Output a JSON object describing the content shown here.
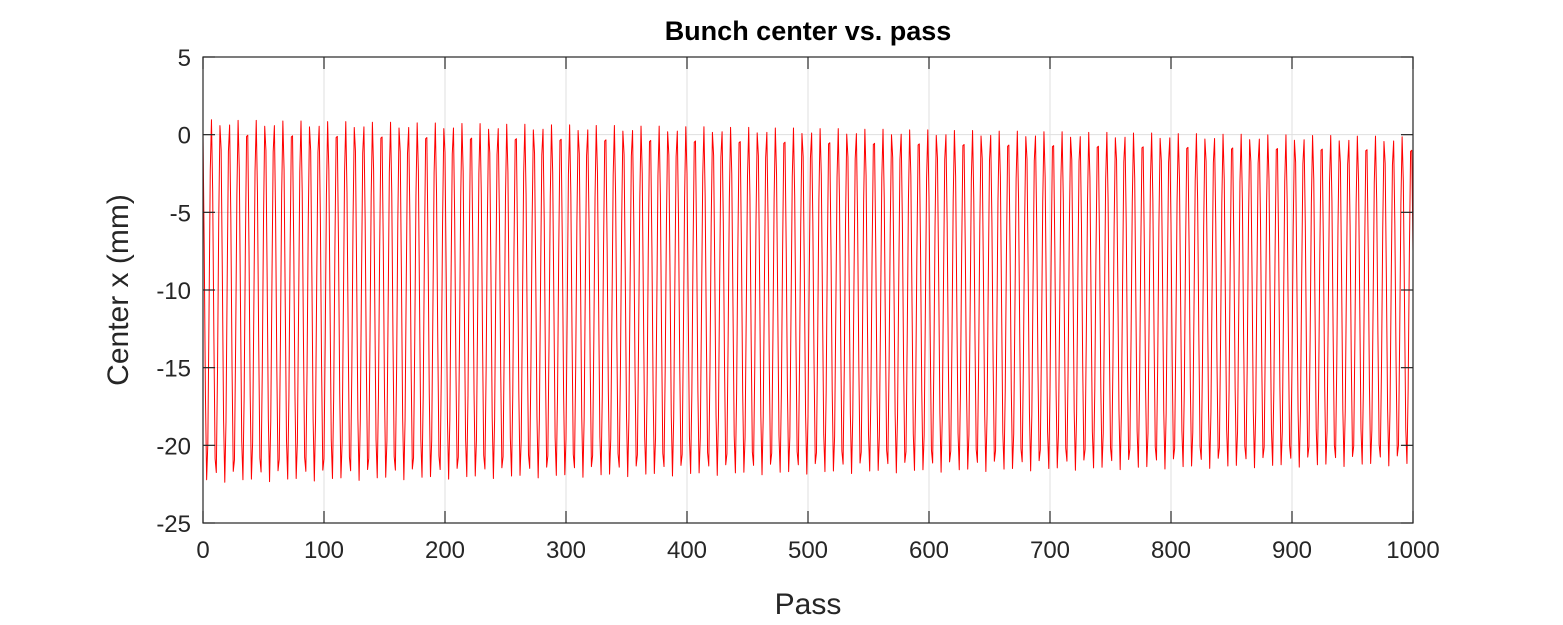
{
  "chart_data": {
    "type": "line",
    "title": "Bunch center vs. pass",
    "xlabel": "Pass",
    "ylabel": "Center x (mm)",
    "xlim": [
      0,
      1000
    ],
    "ylim": [
      -25,
      5
    ],
    "xticks": [
      0,
      100,
      200,
      300,
      400,
      500,
      600,
      700,
      800,
      900,
      1000
    ],
    "yticks": [
      5,
      0,
      -5,
      -10,
      -15,
      -20,
      -25
    ],
    "xtick_labels": [
      "0",
      "100",
      "200",
      "300",
      "400",
      "500",
      "600",
      "700",
      "800",
      "900",
      "1000"
    ],
    "ytick_labels": [
      "5",
      "0",
      "-5",
      "-10",
      "-15",
      "-20",
      "-25"
    ],
    "grid": true,
    "series": [
      {
        "color": "#ff0000",
        "shape": "oscillation sampled once per pass",
        "x_start": 0,
        "x_end": 1000,
        "x_step": 1,
        "center_mm": -10.7,
        "amplitude_start_mm": 11.7,
        "amplitude_end_mm": 10.6,
        "period_passes": 7.4,
        "first_value_mm": 0,
        "last_value_mm": -11.5,
        "max_start_mm": 1.0,
        "min_start_mm": -22.4,
        "max_end_mm": 0.0,
        "min_end_mm": -21.2
      }
    ]
  }
}
